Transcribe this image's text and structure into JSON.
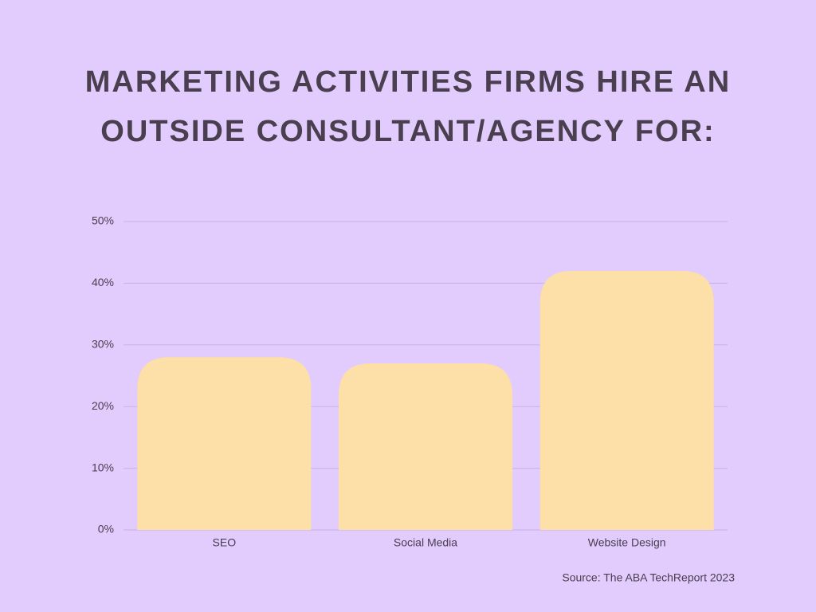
{
  "chart_data": {
    "type": "bar",
    "title": "MARKETING ACTIVITIES FIRMS HIRE AN OUTSIDE CONSULTANT/AGENCY FOR:",
    "categories": [
      "SEO",
      "Social Media",
      "Website Design"
    ],
    "values": [
      28,
      27,
      42
    ],
    "color": "#fddfa8",
    "ylim": [
      0,
      50
    ],
    "yticks": [
      {
        "value": 0,
        "label": "0%"
      },
      {
        "value": 10,
        "label": "10%"
      },
      {
        "value": 20,
        "label": "20%"
      },
      {
        "value": 30,
        "label": "30%"
      },
      {
        "value": 40,
        "label": "40%"
      },
      {
        "value": 50,
        "label": "50%"
      }
    ],
    "grid": true,
    "source": "Source: The ABA TechReport 2023"
  }
}
